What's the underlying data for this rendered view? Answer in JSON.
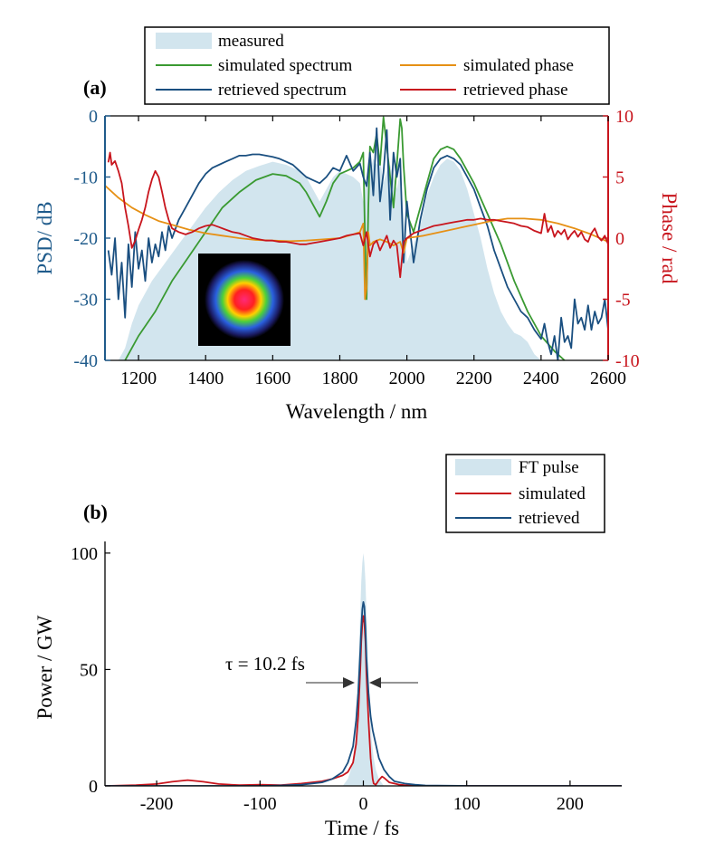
{
  "colors": {
    "measured_fill": "#d2e5ee",
    "left_axis": "#1f5b8b",
    "right_axis": "#c8151d",
    "sim_spectrum": "#3a9a32",
    "ret_spectrum": "#1a4f80",
    "sim_phase": "#e69015",
    "ret_phase": "#c8151d",
    "sim_pulse": "#c8151d",
    "ret_pulse": "#1a4f80"
  },
  "chart_data": [
    {
      "type": "line",
      "panel_label": "(a)",
      "xlabel": "Wavelength / nm",
      "ylabel": "PSD/ dB",
      "y2label": "Phase / rad",
      "xlim": [
        1100,
        2600
      ],
      "ylim": [
        -40,
        0
      ],
      "y2lim": [
        -10,
        10
      ],
      "xticks": [
        1200,
        1400,
        1600,
        1800,
        2000,
        2200,
        2400,
        2600
      ],
      "yticks": [
        -40,
        -30,
        -20,
        -10,
        0
      ],
      "y2ticks": [
        -10,
        -5,
        0,
        5,
        10
      ],
      "legend": {
        "placement": "top",
        "entries": [
          "measured",
          "simulated spectrum",
          "simulated phase",
          "retrieved spectrum",
          "retrieved phase"
        ]
      },
      "inset": "beam profile image",
      "series": [
        {
          "name": "measured",
          "style": "area",
          "axis": "left",
          "x": [
            1140,
            1160,
            1180,
            1200,
            1240,
            1280,
            1320,
            1360,
            1400,
            1440,
            1480,
            1520,
            1560,
            1600,
            1640,
            1680,
            1700,
            1720,
            1740,
            1760,
            1780,
            1800,
            1820,
            1840,
            1860,
            1870,
            1880,
            1890,
            1900,
            1910,
            1920,
            1930,
            1940,
            1950,
            1960,
            1970,
            1980,
            1990,
            2000,
            2020,
            2040,
            2060,
            2080,
            2100,
            2120,
            2140,
            2160,
            2180,
            2200,
            2220,
            2240,
            2260,
            2280,
            2300,
            2320,
            2340,
            2360,
            2380,
            2400
          ],
          "y": [
            -40,
            -38,
            -34,
            -31,
            -27,
            -24,
            -21,
            -18,
            -15,
            -12.5,
            -10.5,
            -9,
            -8.2,
            -7.5,
            -8,
            -9,
            -10,
            -12,
            -14,
            -12,
            -10,
            -9,
            -9.5,
            -10,
            -11,
            -14,
            -10,
            -9,
            -7,
            -8,
            -7,
            -11,
            -9,
            -8,
            -10,
            -12,
            -9,
            -16,
            -24,
            -21,
            -18,
            -13,
            -10,
            -8,
            -7,
            -7.5,
            -9,
            -12,
            -16,
            -20,
            -25,
            -29,
            -32,
            -34,
            -35.5,
            -36,
            -37,
            -39,
            -40
          ]
        },
        {
          "name": "simulated spectrum",
          "axis": "left",
          "x": [
            1160,
            1200,
            1250,
            1300,
            1350,
            1400,
            1450,
            1500,
            1550,
            1600,
            1640,
            1680,
            1700,
            1720,
            1740,
            1760,
            1780,
            1800,
            1820,
            1840,
            1860,
            1870,
            1875,
            1880,
            1885,
            1890,
            1900,
            1910,
            1920,
            1930,
            1940,
            1950,
            1960,
            1970,
            1980,
            1985,
            1990,
            2000,
            2020,
            2040,
            2060,
            2080,
            2100,
            2120,
            2140,
            2160,
            2180,
            2200,
            2240,
            2280,
            2320,
            2360,
            2400,
            2440,
            2470
          ],
          "y": [
            -40,
            -36,
            -32,
            -27,
            -23,
            -19,
            -15,
            -12.5,
            -10.5,
            -9.5,
            -9.8,
            -11,
            -12.5,
            -14.5,
            -16.5,
            -14,
            -11,
            -9.5,
            -9,
            -8.5,
            -7.5,
            -6,
            -20,
            -30,
            -15,
            -5,
            -6,
            -3,
            -8,
            -0.2,
            -5,
            -10,
            -15,
            -8,
            -0.5,
            -2,
            -8,
            -16,
            -19,
            -15,
            -11,
            -7,
            -5.5,
            -5,
            -5.5,
            -7,
            -9,
            -11,
            -16,
            -21,
            -27,
            -32,
            -36,
            -38.5,
            -40
          ]
        },
        {
          "name": "retrieved spectrum",
          "axis": "left",
          "x": [
            1110,
            1120,
            1130,
            1140,
            1150,
            1160,
            1170,
            1180,
            1190,
            1200,
            1210,
            1220,
            1230,
            1240,
            1250,
            1260,
            1270,
            1280,
            1290,
            1300,
            1320,
            1340,
            1360,
            1380,
            1400,
            1420,
            1440,
            1460,
            1480,
            1500,
            1520,
            1540,
            1560,
            1580,
            1600,
            1620,
            1640,
            1660,
            1680,
            1700,
            1720,
            1740,
            1760,
            1780,
            1800,
            1820,
            1840,
            1860,
            1870,
            1880,
            1890,
            1900,
            1910,
            1920,
            1930,
            1940,
            1950,
            1960,
            1970,
            1980,
            1990,
            2000,
            2020,
            2040,
            2060,
            2080,
            2100,
            2120,
            2140,
            2160,
            2180,
            2200,
            2220,
            2240,
            2260,
            2280,
            2300,
            2320,
            2340,
            2360,
            2380,
            2400,
            2410,
            2420,
            2430,
            2440,
            2450,
            2460,
            2470,
            2480,
            2490,
            2500,
            2510,
            2520,
            2530,
            2540,
            2550,
            2560,
            2570,
            2580,
            2590,
            2600
          ],
          "y": [
            -22,
            -26,
            -20,
            -30,
            -24,
            -33,
            -21,
            -28,
            -19,
            -25,
            -22,
            -27,
            -20,
            -24,
            -21,
            -23,
            -19,
            -22,
            -18,
            -20,
            -17,
            -15,
            -13,
            -11,
            -9.5,
            -8.5,
            -8,
            -7.5,
            -7,
            -6.5,
            -6.5,
            -6.3,
            -6.3,
            -6.5,
            -6.7,
            -7,
            -7.5,
            -8,
            -9,
            -10,
            -10.5,
            -11,
            -10,
            -8.5,
            -9,
            -6.5,
            -9,
            -7.8,
            -10,
            -11.5,
            -6,
            -13,
            -2,
            -14,
            -9.3,
            -2.3,
            -17,
            -6,
            -10,
            -7,
            -24,
            -14,
            -24,
            -17,
            -12,
            -8.5,
            -7,
            -6.5,
            -7,
            -8,
            -10,
            -12,
            -15,
            -18,
            -22,
            -25,
            -28,
            -30,
            -32,
            -33,
            -35,
            -36.5,
            -34,
            -37,
            -39,
            -36,
            -40,
            -33,
            -37,
            -36,
            -38,
            -30,
            -34,
            -33,
            -35,
            -31,
            -35,
            -32,
            -34,
            -33,
            -30,
            -35
          ]
        },
        {
          "name": "simulated phase",
          "axis": "right",
          "x": [
            1100,
            1140,
            1180,
            1220,
            1260,
            1300,
            1350,
            1400,
            1450,
            1500,
            1550,
            1600,
            1650,
            1700,
            1750,
            1800,
            1840,
            1860,
            1870,
            1875,
            1880,
            1885,
            1890,
            1900,
            1920,
            1940,
            1960,
            1980,
            1990,
            2000,
            2050,
            2100,
            2150,
            2200,
            2250,
            2300,
            2350,
            2400,
            2450,
            2500,
            2550,
            2600
          ],
          "y": [
            4.3,
            3.3,
            2.5,
            1.9,
            1.4,
            1.1,
            0.7,
            0.4,
            0.2,
            0.0,
            -0.15,
            -0.2,
            -0.25,
            -0.2,
            -0.1,
            0.0,
            0.3,
            0.5,
            1.2,
            -5,
            -4,
            0.5,
            -0.6,
            -0.3,
            -0.1,
            -0.3,
            -0.6,
            -0.3,
            -1.2,
            0.0,
            0.2,
            0.5,
            0.8,
            1.1,
            1.4,
            1.6,
            1.6,
            1.5,
            1.2,
            0.8,
            0.3,
            -0.3
          ]
        },
        {
          "name": "retrieved phase",
          "axis": "right",
          "x": [
            1110,
            1115,
            1120,
            1130,
            1140,
            1150,
            1160,
            1170,
            1180,
            1190,
            1200,
            1210,
            1220,
            1230,
            1240,
            1250,
            1260,
            1270,
            1280,
            1290,
            1300,
            1320,
            1340,
            1360,
            1380,
            1400,
            1420,
            1440,
            1460,
            1480,
            1500,
            1520,
            1540,
            1560,
            1580,
            1600,
            1620,
            1640,
            1660,
            1680,
            1700,
            1720,
            1740,
            1760,
            1780,
            1800,
            1820,
            1840,
            1860,
            1870,
            1880,
            1890,
            1900,
            1910,
            1920,
            1930,
            1940,
            1950,
            1960,
            1970,
            1980,
            1990,
            2000,
            2020,
            2040,
            2060,
            2080,
            2100,
            2120,
            2140,
            2160,
            2180,
            2200,
            2220,
            2240,
            2260,
            2280,
            2300,
            2320,
            2340,
            2360,
            2380,
            2400,
            2410,
            2420,
            2430,
            2440,
            2450,
            2460,
            2470,
            2480,
            2490,
            2500,
            2510,
            2520,
            2530,
            2540,
            2550,
            2560,
            2570,
            2580,
            2590,
            2600
          ],
          "y": [
            6.2,
            7.0,
            6.0,
            6.3,
            5.5,
            4.5,
            2.5,
            1.0,
            -0.8,
            -0.2,
            0.7,
            1.5,
            2.5,
            3.8,
            4.8,
            5.5,
            5.0,
            3.8,
            2.5,
            1.5,
            0.8,
            0.5,
            0.3,
            0.5,
            0.8,
            1.0,
            1.1,
            0.9,
            0.7,
            0.5,
            0.4,
            0.2,
            0.0,
            -0.1,
            -0.2,
            -0.2,
            -0.3,
            -0.3,
            -0.4,
            -0.5,
            -0.5,
            -0.4,
            -0.3,
            -0.2,
            -0.1,
            0.0,
            0.2,
            0.3,
            0.4,
            -0.6,
            0.5,
            -1.5,
            -0.5,
            -0.2,
            -1.0,
            -0.4,
            0.2,
            -0.8,
            -0.2,
            -0.6,
            -3.2,
            -0.3,
            0.0,
            0.4,
            0.6,
            0.8,
            1.0,
            1.1,
            1.2,
            1.3,
            1.4,
            1.5,
            1.5,
            1.6,
            1.5,
            1.5,
            1.4,
            1.3,
            1.2,
            1.0,
            0.9,
            0.6,
            0.4,
            2.0,
            0.5,
            1.0,
            0.1,
            0.6,
            0.3,
            0.7,
            -0.1,
            0.3,
            0.6,
            0.1,
            0.5,
            -0.1,
            -0.3,
            0.4,
            0.8,
            0.1,
            -0.2,
            0.2,
            -0.5
          ]
        }
      ]
    },
    {
      "type": "line",
      "panel_label": "(b)",
      "xlabel": "Time / fs",
      "ylabel": "Power / GW",
      "xlim": [
        -250,
        250
      ],
      "ylim": [
        0,
        105
      ],
      "xticks": [
        -200,
        -100,
        0,
        100,
        200
      ],
      "yticks": [
        0,
        50,
        100
      ],
      "annotation": "τ = 10.2 fs",
      "legend": {
        "placement": "top-right",
        "entries": [
          "FT pulse",
          "simulated",
          "retrieved"
        ]
      },
      "series": [
        {
          "name": "FT pulse",
          "style": "area",
          "x": [
            -20,
            -15,
            -12,
            -10,
            -8,
            -6,
            -5,
            -4,
            -3,
            -2,
            -1,
            0,
            1,
            2,
            3,
            4,
            5,
            6,
            8,
            10,
            12,
            15,
            20
          ],
          "y": [
            0,
            3,
            7,
            12,
            20,
            35,
            48,
            62,
            75,
            88,
            96,
            100,
            96,
            88,
            75,
            62,
            48,
            35,
            20,
            12,
            7,
            3,
            0
          ]
        },
        {
          "name": "simulated",
          "x": [
            -250,
            -220,
            -200,
            -185,
            -170,
            -155,
            -140,
            -120,
            -100,
            -80,
            -60,
            -40,
            -30,
            -20,
            -15,
            -10,
            -7,
            -5,
            -3,
            -2,
            -1,
            0,
            1,
            2,
            3,
            5,
            7,
            9,
            10,
            12,
            15,
            18,
            20,
            25,
            30,
            35,
            40,
            60,
            100,
            150,
            200,
            250
          ],
          "y": [
            0,
            0.3,
            0.8,
            1.8,
            2.5,
            1.8,
            0.8,
            0.3,
            0.5,
            0.3,
            1.0,
            2.0,
            3.0,
            4.5,
            6.0,
            10,
            18,
            30,
            50,
            62,
            70,
            73,
            70,
            62,
            48,
            28,
            12,
            3,
            1,
            0.5,
            2.5,
            4.0,
            3.5,
            1.5,
            1.0,
            0.5,
            0.3,
            0,
            0,
            0,
            0,
            0
          ]
        },
        {
          "name": "retrieved",
          "x": [
            -250,
            -100,
            -80,
            -60,
            -40,
            -30,
            -20,
            -15,
            -10,
            -7,
            -5,
            -3,
            -2,
            -1,
            0,
            1,
            2,
            3,
            5,
            7,
            9,
            12,
            15,
            20,
            25,
            30,
            40,
            50,
            60,
            100,
            250
          ],
          "y": [
            0,
            0,
            0.2,
            0.5,
            1.5,
            3,
            6,
            10,
            17,
            28,
            40,
            58,
            68,
            76,
            79,
            77,
            68,
            55,
            40,
            30,
            24,
            18,
            12,
            7,
            4,
            2,
            1,
            0.5,
            0.2,
            0,
            0
          ]
        }
      ]
    }
  ]
}
